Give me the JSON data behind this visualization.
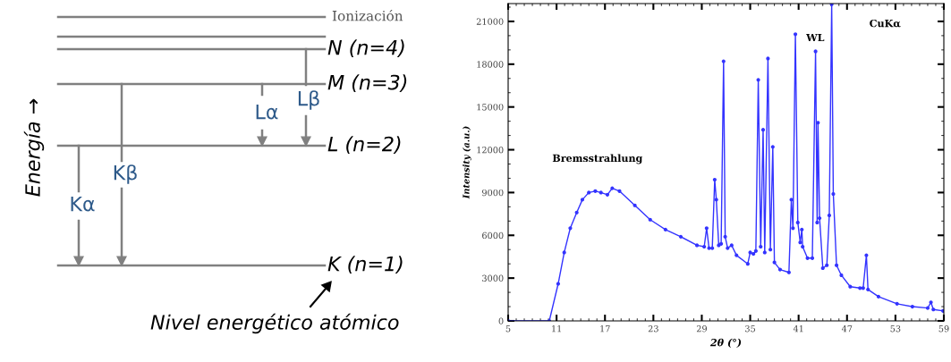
{
  "chart_data": [
    {
      "type": "other",
      "annotations": [
        "Ionización",
        "N (n=4)",
        "M (n=3)",
        "L (n=2)",
        "K (n=1)",
        "Lα",
        "Lβ",
        "Kα",
        "Kβ",
        "Energía →",
        "Nivel energético atómico"
      ]
    },
    {
      "type": "line",
      "xlabel": "2θ (°)",
      "ylabel": "Intensity (a.u.)",
      "marker": "circle",
      "grid": false,
      "x": [
        5,
        10.1,
        11.2,
        11.95,
        12.7,
        13.5,
        14.2,
        15,
        15.8,
        16.5,
        17.3,
        17.9,
        18.8,
        20.7,
        22.6,
        24.5,
        26.4,
        28.4,
        29.3,
        29.6,
        29.9,
        30.3,
        30.6,
        30.8,
        31.1,
        31.4,
        31.7,
        31.9,
        32.2,
        32.7,
        33.3,
        34.7,
        35.0,
        35.4,
        35.7,
        36.0,
        36.3,
        36.6,
        36.8,
        37.2,
        37.5,
        37.8,
        38.0,
        38.7,
        39.8,
        40.1,
        40.3,
        40.6,
        40.9,
        41.2,
        41.4,
        41.5,
        42.1,
        42.7,
        43.1,
        43.3,
        43.4,
        43.6,
        44.0,
        44.5,
        44.8,
        45.1,
        45.3,
        45.7,
        46.3,
        47.4,
        48.6,
        49.0,
        49.4,
        49.6,
        50.9,
        53.2,
        55.1,
        57.0,
        57.4,
        57.7,
        58.9
      ],
      "series": [
        {
          "color": "#3333ff",
          "values": [
            0,
            0,
            2600,
            4800,
            6500,
            7600,
            8500,
            9000,
            9100,
            9000,
            8850,
            9300,
            9100,
            8100,
            7100,
            6400,
            5900,
            5300,
            5200,
            6500,
            5100,
            5100,
            9900,
            8500,
            5300,
            5400,
            18200,
            5900,
            5100,
            5300,
            4600,
            4000,
            4800,
            4700,
            4900,
            16900,
            5200,
            13400,
            4800,
            18400,
            5000,
            12200,
            4100,
            3600,
            3400,
            8500,
            6500,
            20100,
            6900,
            5500,
            6400,
            5200,
            4400,
            4400,
            18900,
            6900,
            13900,
            7200,
            3700,
            3900,
            7400,
            22200,
            8900,
            3900,
            3200,
            2400,
            2300,
            2300,
            4600,
            2200,
            1700,
            1200,
            1000,
            900,
            1300,
            800,
            700
          ]
        }
      ],
      "xlim": [
        5,
        59
      ],
      "xticks": [
        5,
        11,
        17,
        23,
        29,
        35,
        41,
        47,
        53,
        59
      ],
      "ylim": [
        0,
        22250
      ],
      "yticks": [
        0,
        3000,
        6000,
        9000,
        12000,
        15000,
        18000,
        21000
      ],
      "annotations": [
        "Bremsstrahlung",
        "WL",
        "CuKα"
      ]
    }
  ]
}
